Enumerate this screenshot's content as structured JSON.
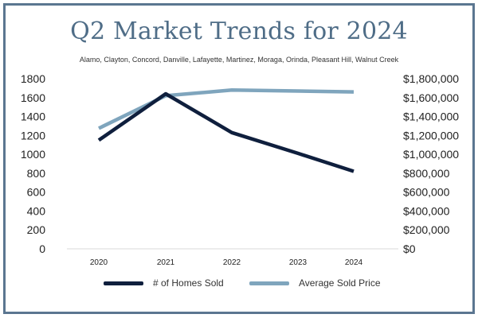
{
  "chart_data": {
    "type": "line",
    "title": "Q2 Market Trends for 2024",
    "subtitle": "Alamo, Clayton, Concord, Danville, Lafayette, Martinez, Moraga, Orinda, Pleasant Hill, Walnut Creek",
    "categories": [
      "2020",
      "2021",
      "2022",
      "2023",
      "2024"
    ],
    "series": [
      {
        "name": "# of Homes Sold",
        "axis": "left",
        "color": "#0f1f3d",
        "values": [
          1150,
          1640,
          1230,
          1010,
          820
        ]
      },
      {
        "name": "Average Sold Price",
        "axis": "right",
        "color": "#7fa5bd",
        "values": [
          1275000,
          1620000,
          1680000,
          1670000,
          1660000
        ]
      }
    ],
    "y_left": {
      "ylim": [
        0,
        1800
      ],
      "ticks": [
        "0",
        "200",
        "400",
        "600",
        "800",
        "1000",
        "1200",
        "1400",
        "1600",
        "1800"
      ]
    },
    "y_right": {
      "ylim": [
        0,
        1800000
      ],
      "ticks": [
        "$0",
        "$200,000",
        "$400,000",
        "$600,000",
        "$800,000",
        "$1,000,000",
        "$1,200,000",
        "$1,400,000",
        "$1,600,000",
        "$1,800,000"
      ]
    },
    "grid": false,
    "legend_position": "bottom"
  }
}
